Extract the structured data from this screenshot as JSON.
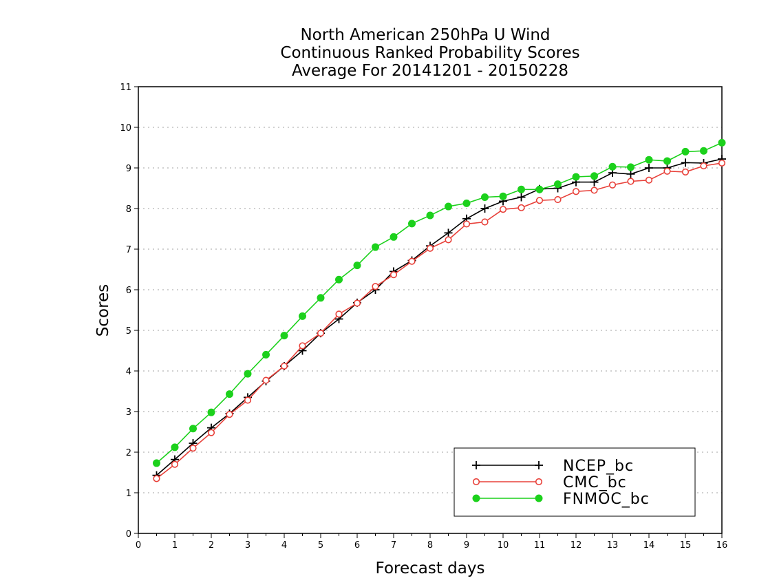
{
  "chart_data": {
    "type": "line",
    "title": [
      "North American 250hPa U Wind",
      "Continuous Ranked Probability Scores",
      "Average For 20141201 - 20150228"
    ],
    "xlabel": "Forecast days",
    "ylabel": "Scores",
    "xlim": [
      0,
      16
    ],
    "ylim": [
      0,
      11
    ],
    "xticks": [
      "0",
      "1",
      "2",
      "3",
      "4",
      "5",
      "6",
      "7",
      "8",
      "9",
      "10",
      "11",
      "12",
      "13",
      "14",
      "15",
      "16"
    ],
    "yticks": [
      "0",
      "1",
      "2",
      "3",
      "4",
      "5",
      "6",
      "7",
      "8",
      "9",
      "10",
      "11"
    ],
    "grid": true,
    "legend_position": "bottom-right",
    "x": [
      0.5,
      1,
      1.5,
      2,
      2.5,
      3,
      3.5,
      4,
      4.5,
      5,
      5.5,
      6,
      6.5,
      7,
      7.5,
      8,
      8.5,
      9,
      9.5,
      10,
      10.5,
      11,
      11.5,
      12,
      12.5,
      13,
      13.5,
      14,
      14.5,
      15,
      15.5,
      16
    ],
    "series": [
      {
        "name": "NCEP_bc",
        "color": "#000000",
        "marker": "plus",
        "values": [
          1.43,
          1.82,
          2.22,
          2.6,
          2.95,
          3.35,
          3.75,
          4.12,
          4.5,
          4.93,
          5.28,
          5.68,
          6.0,
          6.45,
          6.72,
          7.08,
          7.4,
          7.75,
          8.0,
          8.18,
          8.28,
          8.48,
          8.5,
          8.65,
          8.65,
          8.88,
          8.85,
          9.0,
          9.0,
          9.13,
          9.12,
          9.22
        ]
      },
      {
        "name": "CMC_bc",
        "color": "#e8413a",
        "marker": "open-circle",
        "values": [
          1.35,
          1.7,
          2.1,
          2.48,
          2.93,
          3.28,
          3.77,
          4.12,
          4.62,
          4.93,
          5.4,
          5.67,
          6.08,
          6.37,
          6.7,
          7.02,
          7.23,
          7.62,
          7.67,
          7.98,
          8.02,
          8.2,
          8.22,
          8.42,
          8.45,
          8.58,
          8.67,
          8.7,
          8.92,
          8.9,
          9.05,
          9.12
        ]
      },
      {
        "name": "FNMOC_bc",
        "color": "#1cd11c",
        "marker": "filled-circle",
        "values": [
          1.73,
          2.12,
          2.58,
          2.98,
          3.43,
          3.93,
          4.4,
          4.87,
          5.35,
          5.8,
          6.25,
          6.6,
          7.05,
          7.3,
          7.63,
          7.83,
          8.05,
          8.13,
          8.28,
          8.3,
          8.47,
          8.47,
          8.6,
          8.78,
          8.8,
          9.03,
          9.02,
          9.2,
          9.17,
          9.4,
          9.42,
          9.62
        ]
      }
    ]
  }
}
